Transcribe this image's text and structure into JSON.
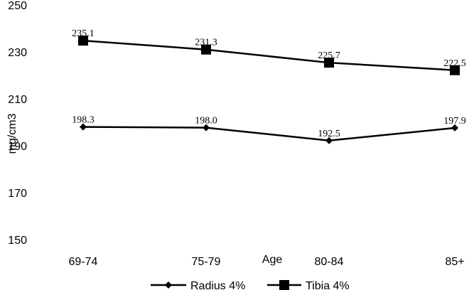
{
  "chart_data": {
    "type": "line",
    "categories": [
      "69-74",
      "75-79",
      "80-84",
      "85+"
    ],
    "xlabel": "Age",
    "ylabel": "mg/cm3",
    "ylim": [
      150,
      250
    ],
    "yticks": [
      150,
      170,
      190,
      210,
      230,
      250
    ],
    "grid": false,
    "legend_position": "bottom",
    "series": [
      {
        "name": "Radius 4%",
        "values": [
          198.3,
          198.0,
          192.5,
          197.9
        ],
        "labels": [
          "198.3",
          "198.0",
          "192.5",
          "197.9"
        ],
        "marker": "diamond",
        "color": "#000000"
      },
      {
        "name": "Tibia 4%",
        "values": [
          235.1,
          231.3,
          225.7,
          222.5
        ],
        "labels": [
          "235.1",
          "231.3",
          "225.7",
          "222.5"
        ],
        "marker": "square",
        "color": "#000000"
      }
    ]
  }
}
